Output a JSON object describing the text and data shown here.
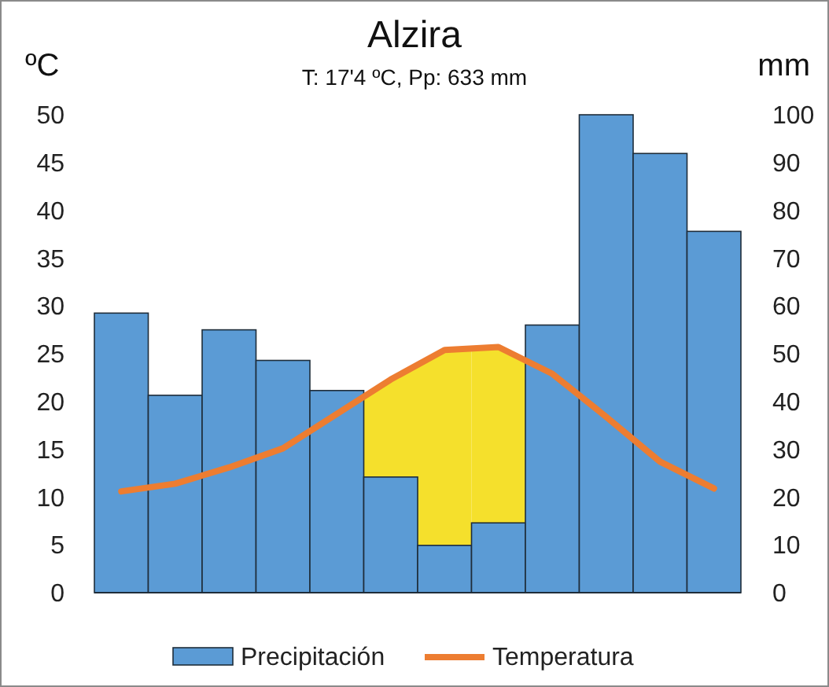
{
  "chart_data": {
    "type": "bar",
    "title": "Alzira",
    "subtitle": "T: 17'4 ºC, Pp: 633 mm",
    "ylabel": "ºC",
    "y2label": "mm",
    "categories": [
      null,
      null,
      null,
      null,
      null,
      null,
      null,
      null,
      null,
      null,
      null,
      null
    ],
    "series": [
      {
        "name": "Precipitación",
        "axis": "y2",
        "color": "#5b9bd5",
        "values": [
          58.5,
          41.3,
          55,
          48.6,
          42.3,
          24.2,
          9.9,
          14.6,
          56,
          100,
          91.9,
          75.6
        ]
      },
      {
        "name": "Temperatura",
        "type": "line",
        "axis": "y",
        "color": "#ed7d31",
        "values": [
          10.6,
          11.4,
          13.1,
          15.1,
          18.7,
          22.3,
          25.4,
          25.7,
          22.9,
          18.4,
          13.7,
          10.9
        ]
      }
    ],
    "ylim": [
      0,
      50
    ],
    "yticks": [
      0,
      5,
      10,
      15,
      20,
      25,
      30,
      35,
      40,
      45,
      50
    ],
    "y2lim": [
      0,
      100
    ],
    "y2ticks": [
      0,
      10,
      20,
      30,
      40,
      50,
      60,
      70,
      80,
      90,
      100
    ],
    "grid": false,
    "legend": "bottom",
    "marker": "none",
    "line_style": "solid"
  }
}
